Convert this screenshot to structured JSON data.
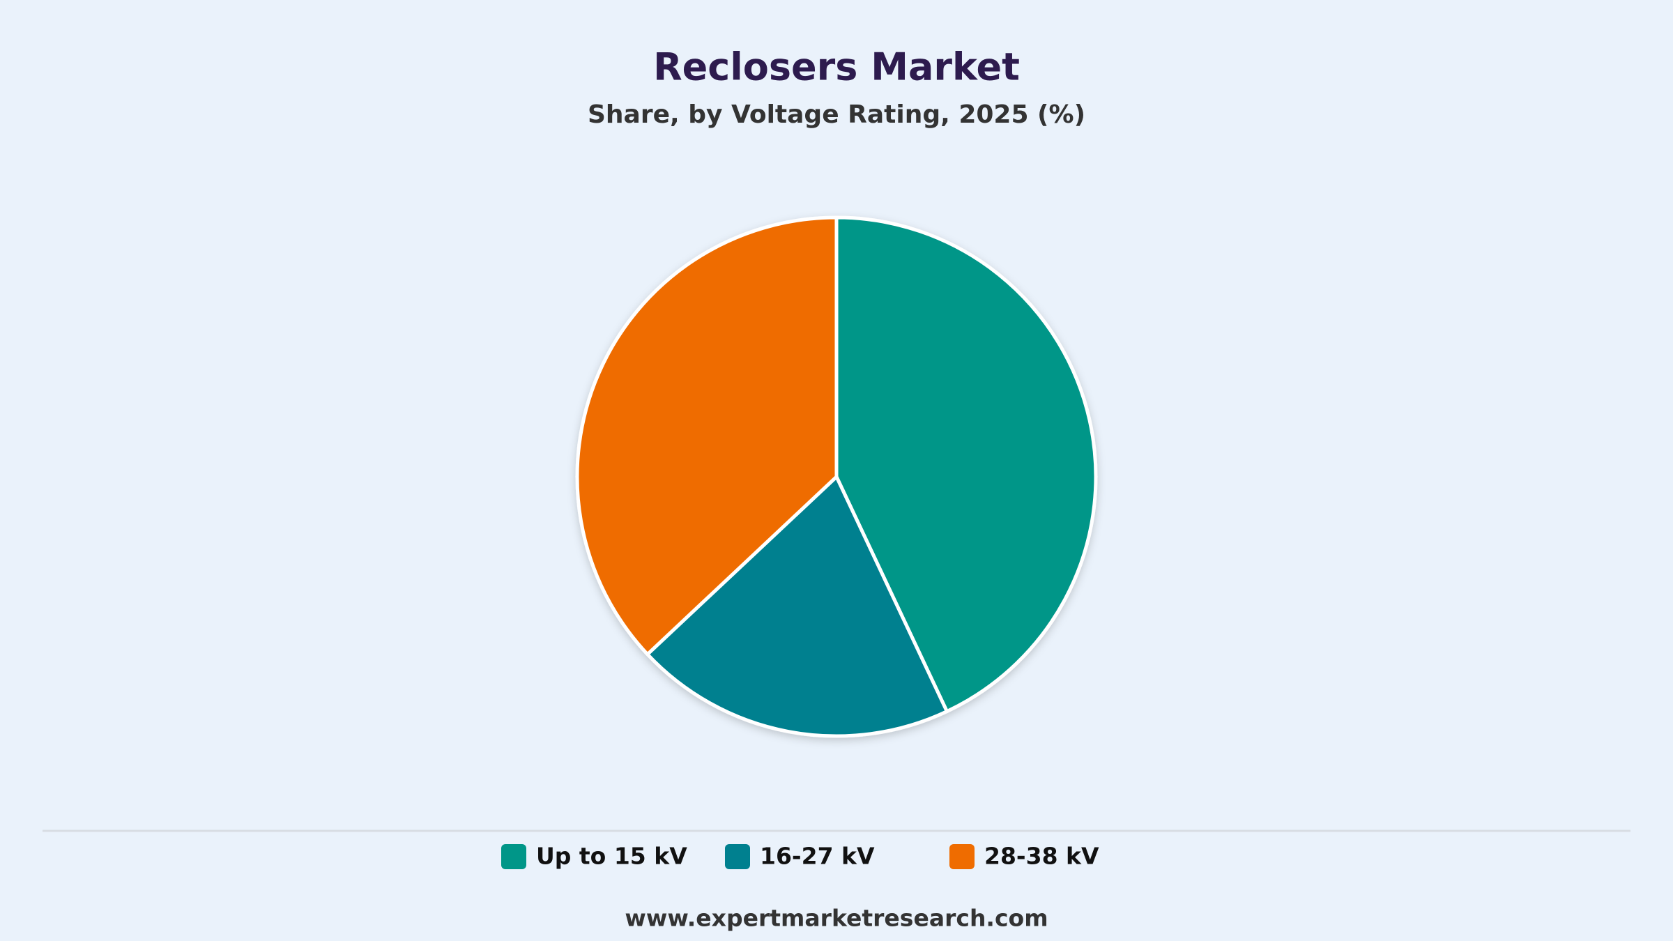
{
  "chart_data": {
    "type": "pie",
    "title": "Reclosers Market",
    "subtitle": "Share, by Voltage Rating, 2025 (%)",
    "categories": [
      "Up to 15 kV",
      "16-27 kV",
      "28-38 kV"
    ],
    "values": [
      43,
      20,
      37
    ],
    "colors": [
      "#009688",
      "#00808f",
      "#ef6c00"
    ],
    "legend": "bottom",
    "source": "www.expertmarketresearch.com"
  }
}
